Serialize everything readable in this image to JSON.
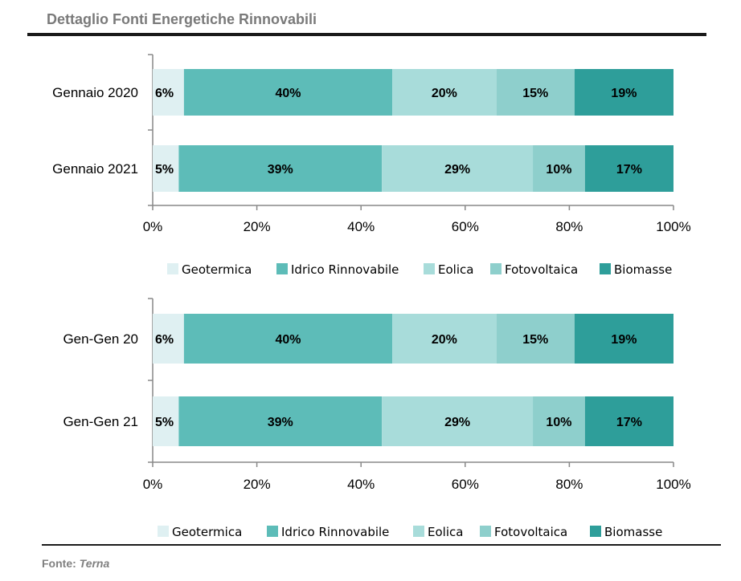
{
  "title": "Dettaglio Fonti Energetiche Rinnovabili",
  "source": {
    "label": "Fonte: ",
    "value": "Terna"
  },
  "colors": {
    "Geotermica": "#dff0f2",
    "Idrico Rinnovabile": "#5dbcb8",
    "Eolica": "#a8dcda",
    "Fotovoltaica": "#8ecfcc",
    "Biomasse": "#2e9e9a"
  },
  "chart_data": [
    {
      "type": "bar",
      "orientation": "horizontal",
      "stacked": true,
      "categories": [
        "Gennaio 2020",
        "Gennaio 2021"
      ],
      "series": [
        {
          "name": "Geotermica",
          "values": [
            6,
            5
          ]
        },
        {
          "name": "Idrico Rinnovabile",
          "values": [
            40,
            39
          ]
        },
        {
          "name": "Eolica",
          "values": [
            20,
            29
          ]
        },
        {
          "name": "Fotovoltaica",
          "values": [
            15,
            10
          ]
        },
        {
          "name": "Biomasse",
          "values": [
            19,
            17
          ]
        }
      ],
      "xlim": [
        0,
        100
      ],
      "xticks": [
        "0%",
        "20%",
        "40%",
        "60%",
        "80%",
        "100%"
      ],
      "legend": "bottom",
      "grid": false
    },
    {
      "type": "bar",
      "orientation": "horizontal",
      "stacked": true,
      "categories": [
        "Gen-Gen 20",
        "Gen-Gen 21"
      ],
      "series": [
        {
          "name": "Geotermica",
          "values": [
            6,
            5
          ]
        },
        {
          "name": "Idrico Rinnovabile",
          "values": [
            40,
            39
          ]
        },
        {
          "name": "Eolica",
          "values": [
            20,
            29
          ]
        },
        {
          "name": "Fotovoltaica",
          "values": [
            15,
            10
          ]
        },
        {
          "name": "Biomasse",
          "values": [
            19,
            17
          ]
        }
      ],
      "xlim": [
        0,
        100
      ],
      "xticks": [
        "0%",
        "20%",
        "40%",
        "60%",
        "80%",
        "100%"
      ],
      "legend": "bottom",
      "grid": false
    }
  ]
}
